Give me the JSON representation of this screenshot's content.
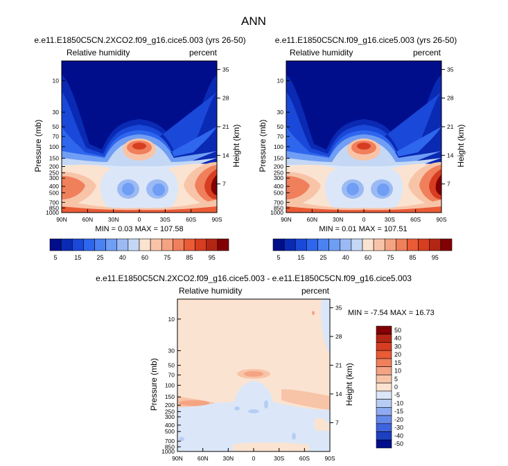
{
  "page_title": "ANN",
  "chart_data": [
    {
      "type": "heatmap",
      "title": "e.e11.E1850C5CN.2XCO2.f09_g16.cice5.003 (yrs 26-50)",
      "field_label": "Relative humidity",
      "units_label": "percent",
      "ylabel": "Pressure (mb)",
      "y2label": "Height (km)",
      "xticks": [
        "90N",
        "60N",
        "30N",
        "0",
        "30S",
        "60S",
        "90S"
      ],
      "yticks": [
        10,
        30,
        50,
        70,
        100,
        150,
        200,
        250,
        300,
        400,
        500,
        700,
        850,
        1000
      ],
      "height_ticks": [
        35,
        28,
        21,
        14,
        7
      ],
      "stats": "MIN =  0.03  MAX = 107.58",
      "colorbar": {
        "labels": [
          "5",
          "15",
          "25",
          "40",
          "60",
          "75",
          "85",
          "95"
        ]
      }
    },
    {
      "type": "heatmap",
      "title": "e.e11.E1850C5CN.f09_g16.cice5.003 (yrs 26-50)",
      "field_label": "Relative humidity",
      "units_label": "percent",
      "ylabel": "Pressure (mb)",
      "y2label": "Height (km)",
      "xticks": [
        "90N",
        "60N",
        "30N",
        "0",
        "30S",
        "60S",
        "90S"
      ],
      "yticks": [
        10,
        30,
        50,
        70,
        100,
        150,
        200,
        250,
        300,
        400,
        500,
        700,
        850,
        1000
      ],
      "height_ticks": [
        35,
        28,
        21,
        14,
        7
      ],
      "stats": "MIN =  0.01  MAX = 107.51",
      "colorbar": {
        "labels": [
          "5",
          "15",
          "25",
          "40",
          "60",
          "75",
          "85",
          "95"
        ]
      }
    },
    {
      "type": "heatmap",
      "title": "e.e11.E1850C5CN.2XCO2.f09_g16.cice5.003 - e.e11.E1850C5CN.f09_g16.cice5.003",
      "field_label": "Relative humidity",
      "units_label": "percent",
      "ylabel": "Pressure (mb)",
      "y2label": "Height (km)",
      "xticks": [
        "90N",
        "60N",
        "30N",
        "0",
        "30S",
        "60S",
        "90S"
      ],
      "yticks": [
        10,
        30,
        50,
        70,
        100,
        150,
        200,
        250,
        300,
        400,
        500,
        700,
        850,
        1000
      ],
      "height_ticks": [
        35,
        28,
        21,
        14,
        7
      ],
      "stats": "MIN = -7.54  MAX = 16.73",
      "colorbar": {
        "labels": [
          "50",
          "40",
          "30",
          "20",
          "15",
          "10",
          "5",
          "0",
          "-5",
          "-10",
          "-15",
          "-20",
          "-30",
          "-40",
          "-50"
        ]
      }
    }
  ],
  "colors": {
    "seq": [
      "#000e8c",
      "#0a2ab4",
      "#1a48d8",
      "#2f66ee",
      "#4a82f2",
      "#6f9ef4",
      "#9bbaf4",
      "#c4d8f6",
      "#fbe3d1",
      "#f8c4a8",
      "#f4a383",
      "#f07f5c",
      "#ea5b36",
      "#d73d20",
      "#b32614",
      "#820004"
    ],
    "diff": [
      "#820004",
      "#b32614",
      "#d73d20",
      "#ea5b36",
      "#f07f5c",
      "#f4a383",
      "#f8c4a8",
      "#fbe3d1",
      "#dbe7f8",
      "#b8cdf4",
      "#8fabf0",
      "#6688ea",
      "#3e63dd",
      "#1d40c2",
      "#000e8c"
    ]
  }
}
